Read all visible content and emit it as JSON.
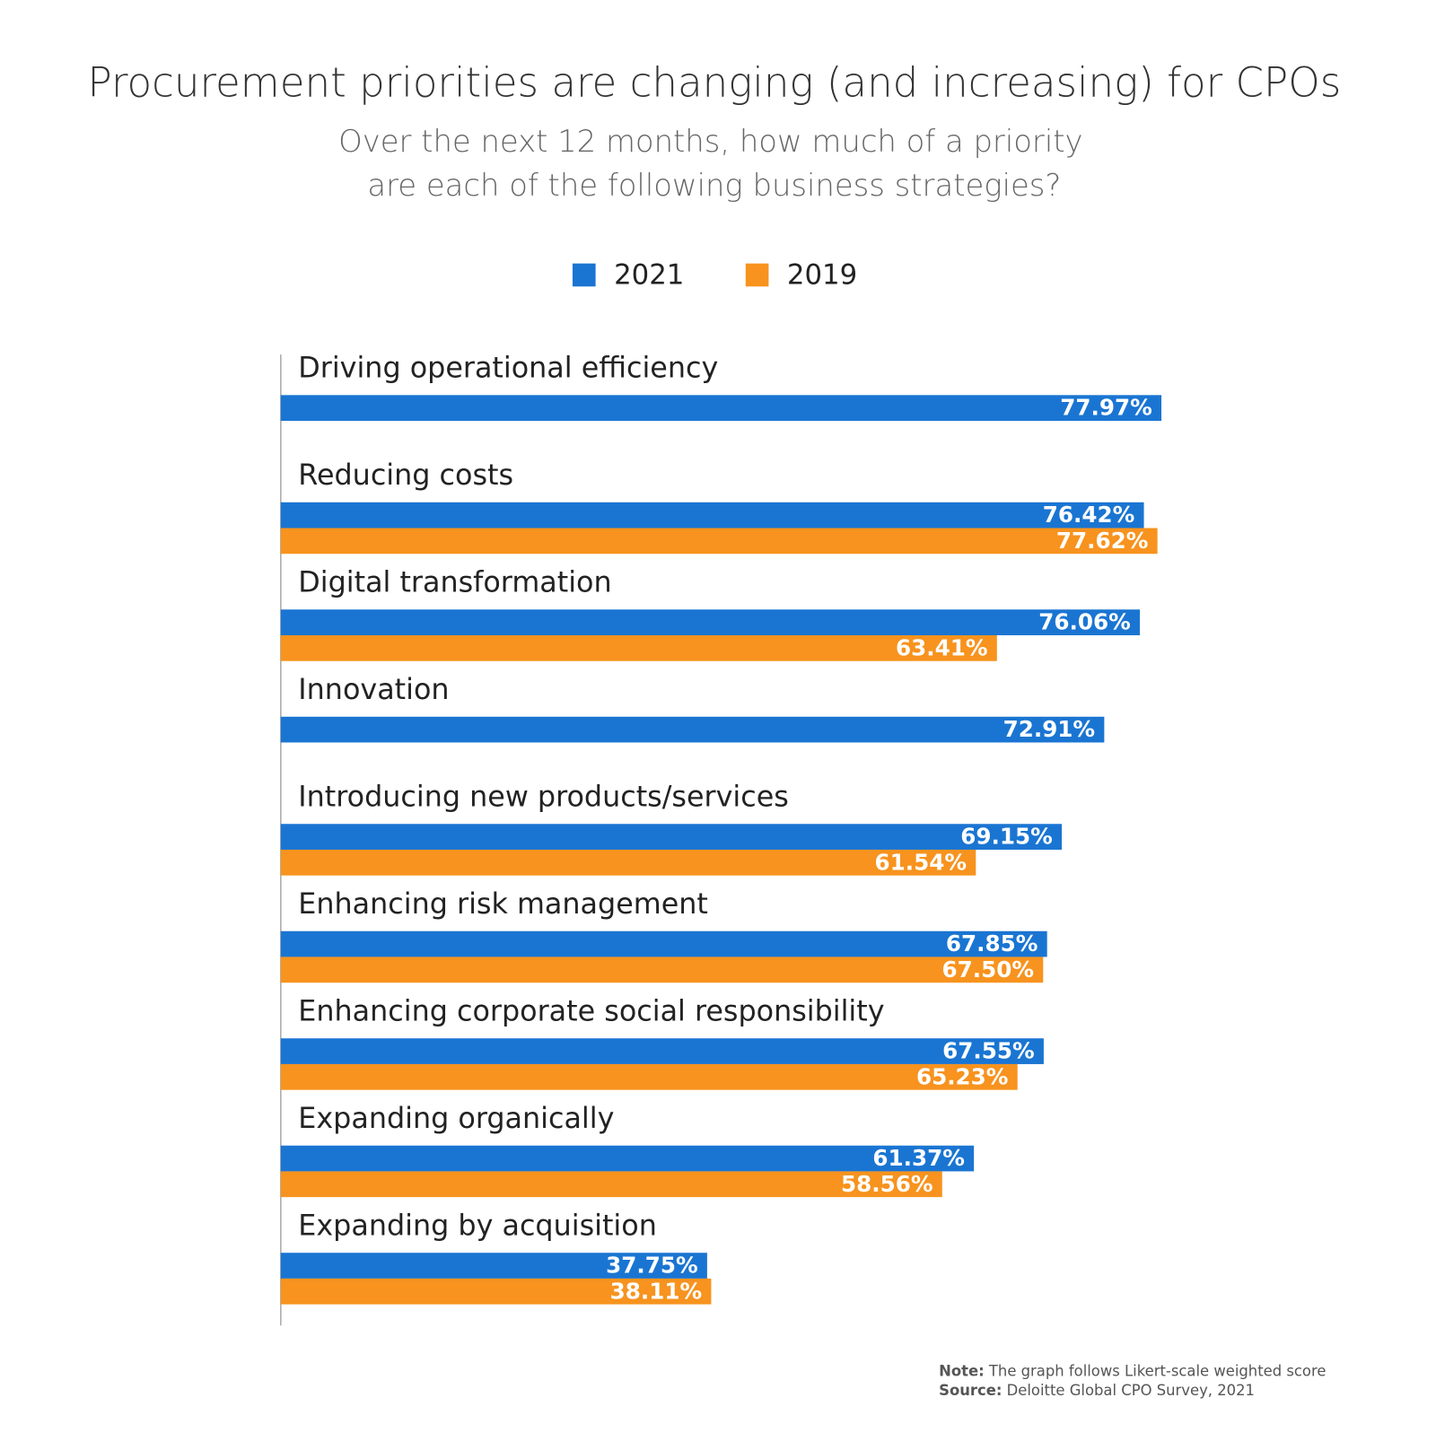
{
  "chart_data": {
    "type": "bar",
    "orientation": "horizontal",
    "title": "Procurement priorities are changing (and increasing) for CPOs",
    "subtitle": [
      "Over the next 12 months, how much of a priority",
      "are each of the following business strategies?"
    ],
    "categories": [
      "Driving operational efficiency",
      "Reducing costs",
      "Digital transformation",
      "Innovation",
      "Introducing new products/services",
      "Enhancing risk management",
      "Enhancing corporate social responsibility",
      "Expanding organically",
      "Expanding by acquisition"
    ],
    "series": [
      {
        "name": "2021",
        "color": "#1a75d2",
        "values": [
          77.97,
          76.42,
          76.06,
          72.91,
          69.15,
          67.85,
          67.55,
          61.37,
          37.75
        ],
        "value_labels": [
          "77.97%",
          "76.42%",
          "76.06%",
          "72.91%",
          "69.15%",
          "67.85%",
          "67.55%",
          "61.37%",
          "37.75%"
        ]
      },
      {
        "name": "2019",
        "color": "#f7931e",
        "values": [
          null,
          77.62,
          63.41,
          null,
          61.54,
          67.5,
          65.23,
          58.56,
          38.11
        ],
        "value_labels": [
          null,
          "77.62%",
          "63.41%",
          null,
          "61.54%",
          "67.50%",
          "65.23%",
          "58.56%",
          "38.11%"
        ]
      }
    ],
    "note": {
      "label": "Note:",
      "text": "The graph follows Likert-scale weighted score"
    },
    "source": {
      "label": "Source:",
      "text": "Deloitte Global CPO Survey, 2021"
    }
  }
}
